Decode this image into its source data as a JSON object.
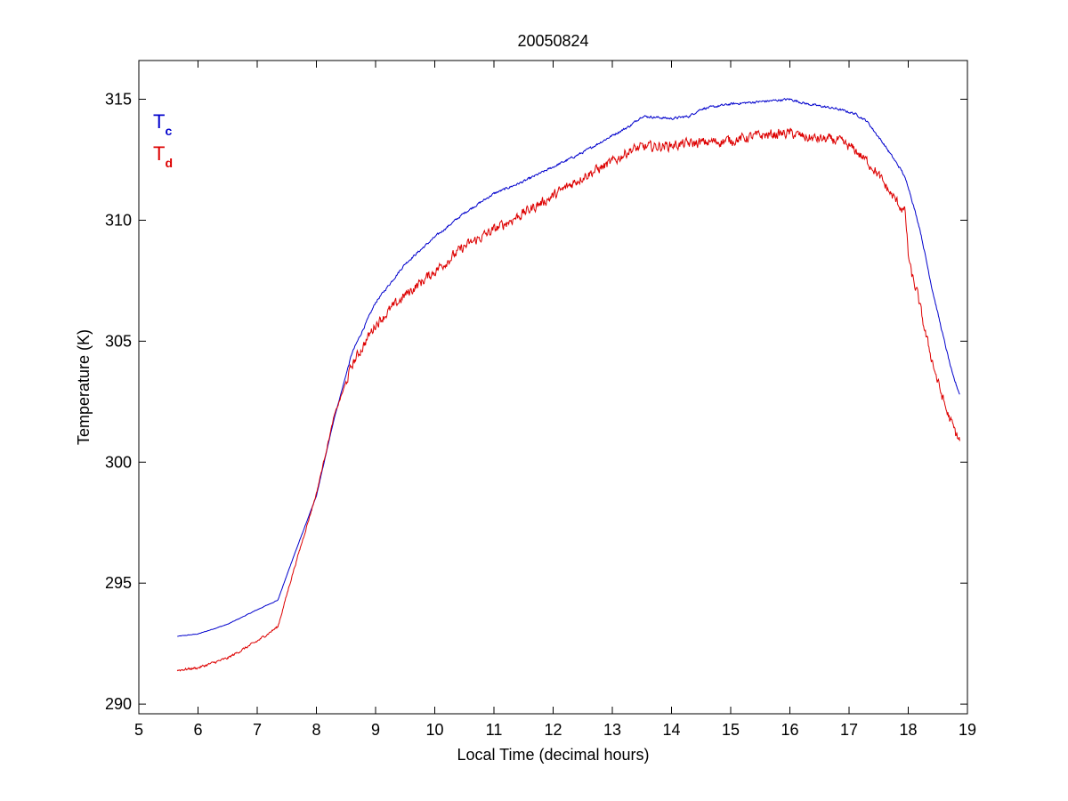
{
  "chart_data": {
    "type": "line",
    "title": "20050824",
    "xlabel": "Local Time (decimal hours)",
    "ylabel": "Temperature (K)",
    "xlim": [
      5,
      19
    ],
    "ylim": [
      289.6,
      316.6
    ],
    "xticks": [
      5,
      6,
      7,
      8,
      9,
      10,
      11,
      12,
      13,
      14,
      15,
      16,
      17,
      18,
      19
    ],
    "yticks": [
      290,
      295,
      300,
      305,
      310,
      315
    ],
    "grid": false,
    "legend": {
      "placement": "top-left",
      "entries": [
        {
          "main": "T",
          "sub": "c",
          "color": "#0000cc"
        },
        {
          "main": "T",
          "sub": "d",
          "color": "#dd0000"
        }
      ]
    },
    "series": [
      {
        "color": "#0000cc",
        "noise": 0.08,
        "x": [
          5.65,
          6.0,
          6.5,
          7.0,
          7.35,
          7.6,
          8.0,
          8.3,
          8.6,
          9.0,
          9.5,
          10.0,
          10.5,
          11.0,
          11.5,
          12.0,
          12.5,
          13.0,
          13.3,
          13.5,
          14.0,
          14.3,
          14.5,
          15.0,
          15.5,
          16.0,
          16.3,
          16.8,
          17.1,
          17.3,
          17.6,
          17.9,
          18.0,
          18.2,
          18.4,
          18.6,
          18.75,
          18.87
        ],
        "y": [
          292.8,
          292.9,
          293.3,
          293.9,
          294.3,
          296.0,
          298.6,
          301.8,
          304.5,
          306.6,
          308.2,
          309.3,
          310.3,
          311.1,
          311.6,
          312.2,
          312.8,
          313.5,
          313.9,
          314.3,
          314.2,
          314.3,
          314.6,
          314.8,
          314.9,
          315.0,
          314.8,
          314.6,
          314.4,
          314.1,
          313.1,
          312.0,
          311.4,
          309.6,
          307.2,
          305.1,
          303.6,
          302.8
        ]
      },
      {
        "color": "#dd0000",
        "noise": 0.35,
        "x": [
          5.65,
          6.0,
          6.5,
          7.0,
          7.35,
          7.6,
          8.0,
          8.3,
          8.6,
          9.0,
          9.5,
          10.0,
          10.5,
          11.0,
          11.5,
          12.0,
          12.5,
          13.0,
          13.3,
          13.5,
          14.0,
          14.5,
          15.0,
          15.5,
          16.0,
          16.3,
          16.8,
          17.1,
          17.4,
          17.7,
          17.95,
          18.0,
          18.05,
          18.15,
          18.3,
          18.5,
          18.65,
          18.8,
          18.87
        ],
        "y": [
          291.4,
          291.5,
          291.9,
          292.6,
          293.2,
          295.4,
          298.7,
          301.9,
          304.0,
          305.7,
          306.9,
          307.9,
          308.9,
          309.6,
          310.3,
          311.0,
          311.8,
          312.4,
          312.9,
          313.0,
          313.1,
          313.2,
          313.3,
          313.5,
          313.6,
          313.4,
          313.3,
          312.9,
          312.2,
          311.1,
          310.3,
          308.6,
          307.8,
          307.0,
          305.2,
          303.3,
          302.1,
          301.2,
          300.9
        ]
      }
    ]
  }
}
